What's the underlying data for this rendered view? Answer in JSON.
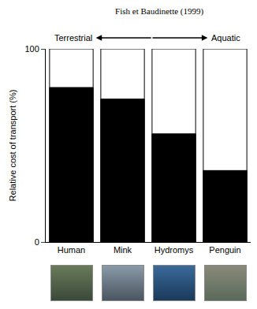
{
  "chart_data": {
    "type": "bar",
    "title": "Fish et Baudinette (1999)",
    "categories": [
      "Human",
      "Mink",
      "Hydromys",
      "Penguin"
    ],
    "values": [
      80,
      74,
      56,
      37
    ],
    "color": "#000000",
    "ylabel": "Relative cost of transport (%)",
    "ylim": [
      0,
      100
    ],
    "yticks": [
      0,
      100
    ],
    "grid": false,
    "annotations": [
      "Terrestrial",
      "Aquatic"
    ]
  }
}
